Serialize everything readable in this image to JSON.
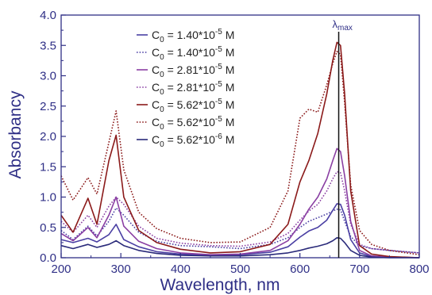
{
  "chart_data": {
    "type": "line",
    "xlabel": "Wavelength, nm",
    "ylabel": "Absorbancy",
    "xlim": [
      200,
      800
    ],
    "ylim": [
      0,
      4.0
    ],
    "xticks": [
      "200",
      "300",
      "400",
      "500",
      "600",
      "700",
      "800"
    ],
    "yticks": [
      "0.0",
      "0.5",
      "1.0",
      "1.5",
      "2.0",
      "2.5",
      "3.0",
      "3.5",
      "4.0"
    ],
    "legend_position": "top-left",
    "marker_line": {
      "x": 665,
      "label": "λ",
      "label_sub": "max"
    },
    "series": [
      {
        "name": "C0 = 1.40*10-5 M",
        "legend_main": "C",
        "legend_sub": "0",
        "legend_eq": " = 1.40*10",
        "legend_sup": "-5",
        "legend_unit": " M",
        "color": "#4a3fa3",
        "dashed": false,
        "x": [
          200,
          220,
          245,
          260,
          280,
          292,
          305,
          330,
          360,
          400,
          450,
          500,
          550,
          580,
          600,
          615,
          630,
          645,
          655,
          662,
          668,
          675,
          685,
          700,
          720,
          750,
          800
        ],
        "y": [
          0.3,
          0.25,
          0.32,
          0.26,
          0.38,
          0.55,
          0.3,
          0.18,
          0.1,
          0.06,
          0.04,
          0.05,
          0.09,
          0.18,
          0.34,
          0.44,
          0.5,
          0.62,
          0.78,
          0.89,
          0.88,
          0.7,
          0.3,
          0.08,
          0.02,
          0.01,
          0.0
        ]
      },
      {
        "name": "C0 = 1.40*10-5 M",
        "legend_main": "C",
        "legend_sub": "0",
        "legend_eq": " = 1.40*10",
        "legend_sup": "-5",
        "legend_unit": " M",
        "color": "#4a3fa3",
        "dashed": true,
        "x": [
          200,
          220,
          245,
          260,
          280,
          292,
          305,
          330,
          360,
          400,
          450,
          500,
          550,
          580,
          600,
          615,
          630,
          645,
          655,
          662,
          668,
          675,
          685,
          700,
          720,
          750,
          800
        ],
        "y": [
          0.45,
          0.3,
          0.52,
          0.36,
          0.6,
          0.82,
          0.7,
          0.42,
          0.27,
          0.2,
          0.18,
          0.15,
          0.22,
          0.33,
          0.5,
          0.6,
          0.66,
          0.72,
          0.77,
          0.8,
          0.79,
          0.6,
          0.35,
          0.2,
          0.15,
          0.12,
          0.08
        ]
      },
      {
        "name": "C0 = 2.81*10-5 M",
        "legend_main": "C",
        "legend_sub": "0",
        "legend_eq": " = 2.81*10",
        "legend_sup": "-5",
        "legend_unit": " M",
        "color": "#8a3fa3",
        "dashed": false,
        "x": [
          200,
          220,
          245,
          260,
          280,
          292,
          305,
          330,
          360,
          400,
          450,
          500,
          550,
          580,
          600,
          615,
          630,
          645,
          655,
          662,
          668,
          675,
          685,
          700,
          720,
          750,
          800
        ],
        "y": [
          0.4,
          0.28,
          0.5,
          0.33,
          0.7,
          1.0,
          0.52,
          0.27,
          0.15,
          0.08,
          0.05,
          0.06,
          0.12,
          0.28,
          0.55,
          0.8,
          1.0,
          1.3,
          1.6,
          1.8,
          1.75,
          1.35,
          0.6,
          0.12,
          0.03,
          0.01,
          0.0
        ]
      },
      {
        "name": "C0 = 2.81*10-5 M",
        "legend_main": "C",
        "legend_sub": "0",
        "legend_eq": " = 2.81*10",
        "legend_sup": "-5",
        "legend_unit": " M",
        "color": "#8a3fa3",
        "dashed": true,
        "x": [
          200,
          220,
          245,
          260,
          280,
          292,
          305,
          330,
          360,
          400,
          450,
          500,
          550,
          580,
          600,
          615,
          630,
          645,
          655,
          662,
          668,
          675,
          685,
          700,
          720,
          750,
          800
        ],
        "y": [
          0.6,
          0.42,
          0.7,
          0.5,
          0.85,
          1.0,
          0.88,
          0.52,
          0.32,
          0.24,
          0.2,
          0.19,
          0.26,
          0.4,
          0.62,
          0.77,
          0.88,
          1.1,
          1.3,
          1.42,
          1.4,
          1.1,
          0.55,
          0.22,
          0.15,
          0.12,
          0.08
        ]
      },
      {
        "name": "C0 = 5.62*10-5 M",
        "legend_main": "C",
        "legend_sub": "0",
        "legend_eq": " = 5.62*10",
        "legend_sup": "-5",
        "legend_unit": " M",
        "color": "#8b1a1a",
        "dashed": false,
        "x": [
          200,
          220,
          245,
          260,
          280,
          292,
          305,
          330,
          360,
          400,
          450,
          500,
          550,
          580,
          600,
          615,
          630,
          645,
          655,
          662,
          668,
          675,
          685,
          700,
          720,
          750,
          800
        ],
        "y": [
          0.7,
          0.42,
          0.98,
          0.55,
          1.6,
          2.02,
          1.0,
          0.45,
          0.25,
          0.14,
          0.08,
          0.1,
          0.22,
          0.55,
          1.25,
          1.6,
          2.05,
          2.7,
          3.25,
          3.55,
          3.5,
          2.7,
          1.1,
          0.2,
          0.06,
          0.02,
          0.0
        ]
      },
      {
        "name": "C0 = 5.62*10-5 M",
        "legend_main": "C",
        "legend_sub": "0",
        "legend_eq": " = 5.62*10",
        "legend_sup": "-5",
        "legend_unit": " M",
        "color": "#8b1a1a",
        "dashed": true,
        "x": [
          200,
          220,
          245,
          260,
          280,
          292,
          305,
          330,
          360,
          400,
          450,
          500,
          550,
          580,
          600,
          615,
          630,
          645,
          655,
          662,
          668,
          675,
          685,
          700,
          720,
          750,
          800
        ],
        "y": [
          1.35,
          0.95,
          1.32,
          1.05,
          1.9,
          2.42,
          1.45,
          0.75,
          0.48,
          0.32,
          0.25,
          0.26,
          0.5,
          1.1,
          2.3,
          2.45,
          2.4,
          2.85,
          3.2,
          3.4,
          3.35,
          2.55,
          1.2,
          0.45,
          0.22,
          0.12,
          0.05
        ]
      },
      {
        "name": "C0 = 5.62*10-6 M",
        "legend_main": "C",
        "legend_sub": "0",
        "legend_eq": " = 5.62*10",
        "legend_sup": "-6",
        "legend_unit": " M",
        "color": "#2a2a7a",
        "dashed": false,
        "x": [
          200,
          220,
          245,
          260,
          280,
          292,
          305,
          330,
          360,
          400,
          450,
          500,
          550,
          580,
          600,
          615,
          630,
          645,
          655,
          662,
          668,
          675,
          685,
          700,
          720,
          750,
          800
        ],
        "y": [
          0.2,
          0.15,
          0.22,
          0.17,
          0.22,
          0.28,
          0.2,
          0.12,
          0.07,
          0.04,
          0.03,
          0.03,
          0.05,
          0.08,
          0.12,
          0.16,
          0.19,
          0.23,
          0.28,
          0.33,
          0.32,
          0.25,
          0.12,
          0.04,
          0.01,
          0.0,
          0.0
        ]
      }
    ]
  }
}
